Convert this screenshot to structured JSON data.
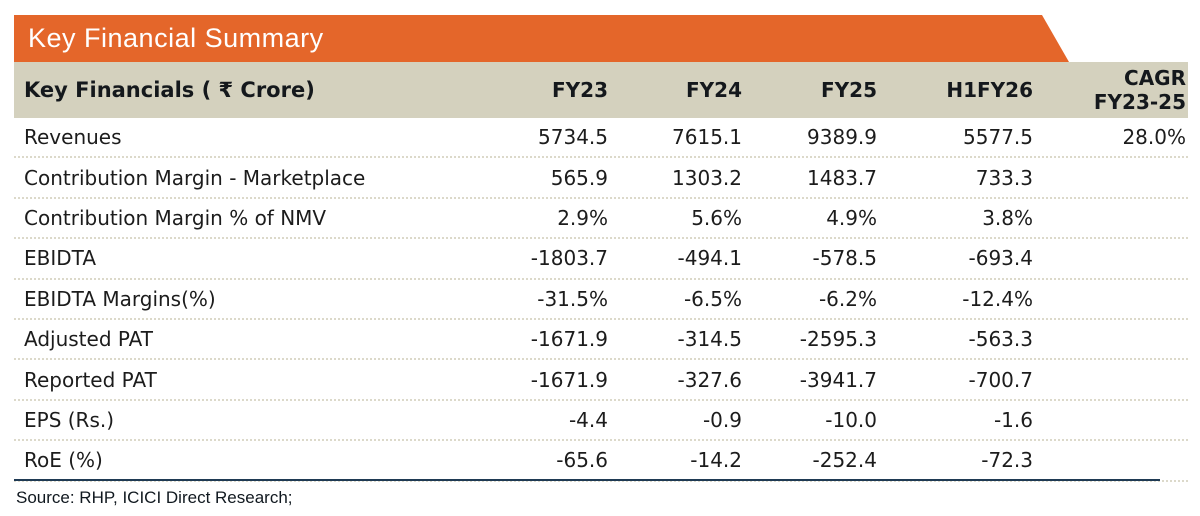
{
  "title_banner": {
    "text": "Key Financial Summary"
  },
  "colors": {
    "banner_orange": "#E4662A",
    "header_beige": "#D4D1BE",
    "divider_navy": "#1F3A54",
    "text_dark": "#1c1c1c"
  },
  "table": {
    "header": {
      "label": "Key Financials ( ₹ Crore)",
      "columns": [
        "FY23",
        "FY24",
        "FY25",
        "H1FY26"
      ],
      "cagr_line1": "CAGR",
      "cagr_line2": "FY23-25"
    },
    "rows": [
      {
        "label": "Revenues",
        "fy23": "5734.5",
        "fy24": "7615.1",
        "fy25": "9389.9",
        "h1fy26": "5577.5",
        "cagr": "28.0%"
      },
      {
        "label": "Contribution Margin - Marketplace",
        "fy23": "565.9",
        "fy24": "1303.2",
        "fy25": "1483.7",
        "h1fy26": "733.3",
        "cagr": ""
      },
      {
        "label": "Contribution Margin % of NMV",
        "fy23": "2.9%",
        "fy24": "5.6%",
        "fy25": "4.9%",
        "h1fy26": "3.8%",
        "cagr": ""
      },
      {
        "label": "EBIDTA",
        "fy23": "-1803.7",
        "fy24": "-494.1",
        "fy25": "-578.5",
        "h1fy26": "-693.4",
        "cagr": ""
      },
      {
        "label": "EBIDTA Margins(%)",
        "fy23": "-31.5%",
        "fy24": "-6.5%",
        "fy25": "-6.2%",
        "h1fy26": "-12.4%",
        "cagr": ""
      },
      {
        "label": "Adjusted PAT",
        "fy23": "-1671.9",
        "fy24": "-314.5",
        "fy25": "-2595.3",
        "h1fy26": "-563.3",
        "cagr": ""
      },
      {
        "label": "Reported PAT",
        "fy23": "-1671.9",
        "fy24": "-327.6",
        "fy25": "-3941.7",
        "h1fy26": "-700.7",
        "cagr": ""
      },
      {
        "label": "EPS (Rs.)",
        "fy23": "-4.4",
        "fy24": "-0.9",
        "fy25": "-10.0",
        "h1fy26": "-1.6",
        "cagr": ""
      },
      {
        "label": "RoE (%)",
        "fy23": "-65.6",
        "fy24": "-14.2",
        "fy25": "-252.4",
        "h1fy26": "-72.3",
        "cagr": ""
      }
    ]
  },
  "footer": {
    "source": "Source: RHP, ICICI Direct Research;"
  }
}
